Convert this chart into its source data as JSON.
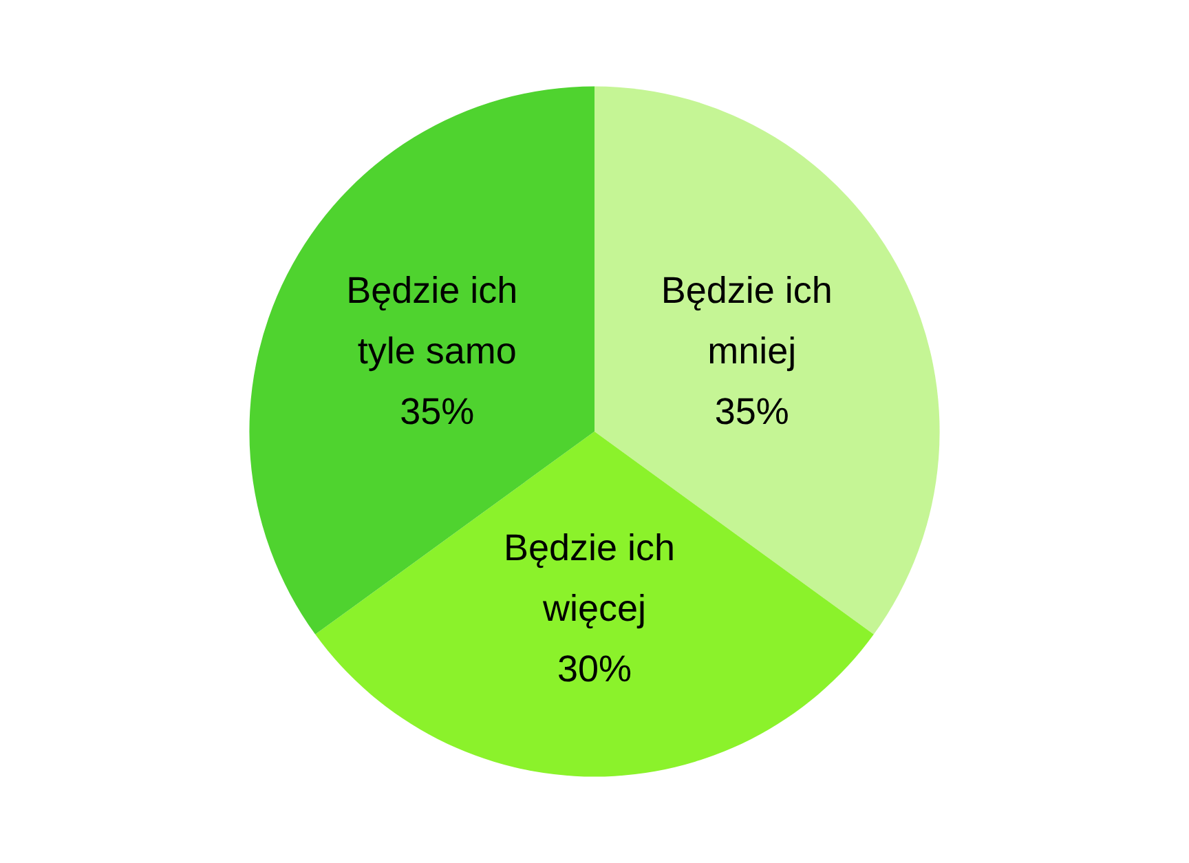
{
  "chart_data": {
    "type": "pie",
    "categories": [
      "Będzie ich mniej",
      "Będzie ich więcej",
      "Będzie ich tyle samo"
    ],
    "values": [
      35,
      30,
      35
    ],
    "colors": [
      "#c5f595",
      "#8bf22b",
      "#4fd32f"
    ],
    "value_labels": [
      "35%",
      "30%",
      "35%"
    ],
    "legend": false
  }
}
